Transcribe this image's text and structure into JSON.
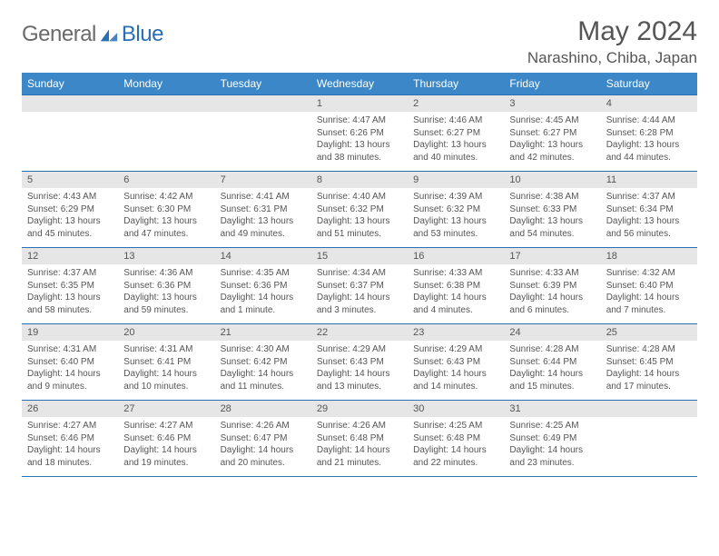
{
  "logo": {
    "general": "General",
    "blue": "Blue",
    "icon_color": "#2a6fb5"
  },
  "title": "May 2024",
  "location": "Narashino, Chiba, Japan",
  "colors": {
    "header_bg": "#3c87c7",
    "header_text": "#ffffff",
    "daynum_bg": "#e6e6e6",
    "body_text": "#555555",
    "rule": "#2a6fb5",
    "logo_gray": "#6a6a6a",
    "logo_blue": "#2a6fb5",
    "page_bg": "#ffffff"
  },
  "day_names": [
    "Sunday",
    "Monday",
    "Tuesday",
    "Wednesday",
    "Thursday",
    "Friday",
    "Saturday"
  ],
  "weeks": [
    [
      null,
      null,
      null,
      {
        "n": "1",
        "sr": "Sunrise: 4:47 AM",
        "ss": "Sunset: 6:26 PM",
        "dl": "Daylight: 13 hours and 38 minutes."
      },
      {
        "n": "2",
        "sr": "Sunrise: 4:46 AM",
        "ss": "Sunset: 6:27 PM",
        "dl": "Daylight: 13 hours and 40 minutes."
      },
      {
        "n": "3",
        "sr": "Sunrise: 4:45 AM",
        "ss": "Sunset: 6:27 PM",
        "dl": "Daylight: 13 hours and 42 minutes."
      },
      {
        "n": "4",
        "sr": "Sunrise: 4:44 AM",
        "ss": "Sunset: 6:28 PM",
        "dl": "Daylight: 13 hours and 44 minutes."
      }
    ],
    [
      {
        "n": "5",
        "sr": "Sunrise: 4:43 AM",
        "ss": "Sunset: 6:29 PM",
        "dl": "Daylight: 13 hours and 45 minutes."
      },
      {
        "n": "6",
        "sr": "Sunrise: 4:42 AM",
        "ss": "Sunset: 6:30 PM",
        "dl": "Daylight: 13 hours and 47 minutes."
      },
      {
        "n": "7",
        "sr": "Sunrise: 4:41 AM",
        "ss": "Sunset: 6:31 PM",
        "dl": "Daylight: 13 hours and 49 minutes."
      },
      {
        "n": "8",
        "sr": "Sunrise: 4:40 AM",
        "ss": "Sunset: 6:32 PM",
        "dl": "Daylight: 13 hours and 51 minutes."
      },
      {
        "n": "9",
        "sr": "Sunrise: 4:39 AM",
        "ss": "Sunset: 6:32 PM",
        "dl": "Daylight: 13 hours and 53 minutes."
      },
      {
        "n": "10",
        "sr": "Sunrise: 4:38 AM",
        "ss": "Sunset: 6:33 PM",
        "dl": "Daylight: 13 hours and 54 minutes."
      },
      {
        "n": "11",
        "sr": "Sunrise: 4:37 AM",
        "ss": "Sunset: 6:34 PM",
        "dl": "Daylight: 13 hours and 56 minutes."
      }
    ],
    [
      {
        "n": "12",
        "sr": "Sunrise: 4:37 AM",
        "ss": "Sunset: 6:35 PM",
        "dl": "Daylight: 13 hours and 58 minutes."
      },
      {
        "n": "13",
        "sr": "Sunrise: 4:36 AM",
        "ss": "Sunset: 6:36 PM",
        "dl": "Daylight: 13 hours and 59 minutes."
      },
      {
        "n": "14",
        "sr": "Sunrise: 4:35 AM",
        "ss": "Sunset: 6:36 PM",
        "dl": "Daylight: 14 hours and 1 minute."
      },
      {
        "n": "15",
        "sr": "Sunrise: 4:34 AM",
        "ss": "Sunset: 6:37 PM",
        "dl": "Daylight: 14 hours and 3 minutes."
      },
      {
        "n": "16",
        "sr": "Sunrise: 4:33 AM",
        "ss": "Sunset: 6:38 PM",
        "dl": "Daylight: 14 hours and 4 minutes."
      },
      {
        "n": "17",
        "sr": "Sunrise: 4:33 AM",
        "ss": "Sunset: 6:39 PM",
        "dl": "Daylight: 14 hours and 6 minutes."
      },
      {
        "n": "18",
        "sr": "Sunrise: 4:32 AM",
        "ss": "Sunset: 6:40 PM",
        "dl": "Daylight: 14 hours and 7 minutes."
      }
    ],
    [
      {
        "n": "19",
        "sr": "Sunrise: 4:31 AM",
        "ss": "Sunset: 6:40 PM",
        "dl": "Daylight: 14 hours and 9 minutes."
      },
      {
        "n": "20",
        "sr": "Sunrise: 4:31 AM",
        "ss": "Sunset: 6:41 PM",
        "dl": "Daylight: 14 hours and 10 minutes."
      },
      {
        "n": "21",
        "sr": "Sunrise: 4:30 AM",
        "ss": "Sunset: 6:42 PM",
        "dl": "Daylight: 14 hours and 11 minutes."
      },
      {
        "n": "22",
        "sr": "Sunrise: 4:29 AM",
        "ss": "Sunset: 6:43 PM",
        "dl": "Daylight: 14 hours and 13 minutes."
      },
      {
        "n": "23",
        "sr": "Sunrise: 4:29 AM",
        "ss": "Sunset: 6:43 PM",
        "dl": "Daylight: 14 hours and 14 minutes."
      },
      {
        "n": "24",
        "sr": "Sunrise: 4:28 AM",
        "ss": "Sunset: 6:44 PM",
        "dl": "Daylight: 14 hours and 15 minutes."
      },
      {
        "n": "25",
        "sr": "Sunrise: 4:28 AM",
        "ss": "Sunset: 6:45 PM",
        "dl": "Daylight: 14 hours and 17 minutes."
      }
    ],
    [
      {
        "n": "26",
        "sr": "Sunrise: 4:27 AM",
        "ss": "Sunset: 6:46 PM",
        "dl": "Daylight: 14 hours and 18 minutes."
      },
      {
        "n": "27",
        "sr": "Sunrise: 4:27 AM",
        "ss": "Sunset: 6:46 PM",
        "dl": "Daylight: 14 hours and 19 minutes."
      },
      {
        "n": "28",
        "sr": "Sunrise: 4:26 AM",
        "ss": "Sunset: 6:47 PM",
        "dl": "Daylight: 14 hours and 20 minutes."
      },
      {
        "n": "29",
        "sr": "Sunrise: 4:26 AM",
        "ss": "Sunset: 6:48 PM",
        "dl": "Daylight: 14 hours and 21 minutes."
      },
      {
        "n": "30",
        "sr": "Sunrise: 4:25 AM",
        "ss": "Sunset: 6:48 PM",
        "dl": "Daylight: 14 hours and 22 minutes."
      },
      {
        "n": "31",
        "sr": "Sunrise: 4:25 AM",
        "ss": "Sunset: 6:49 PM",
        "dl": "Daylight: 14 hours and 23 minutes."
      },
      null
    ]
  ]
}
